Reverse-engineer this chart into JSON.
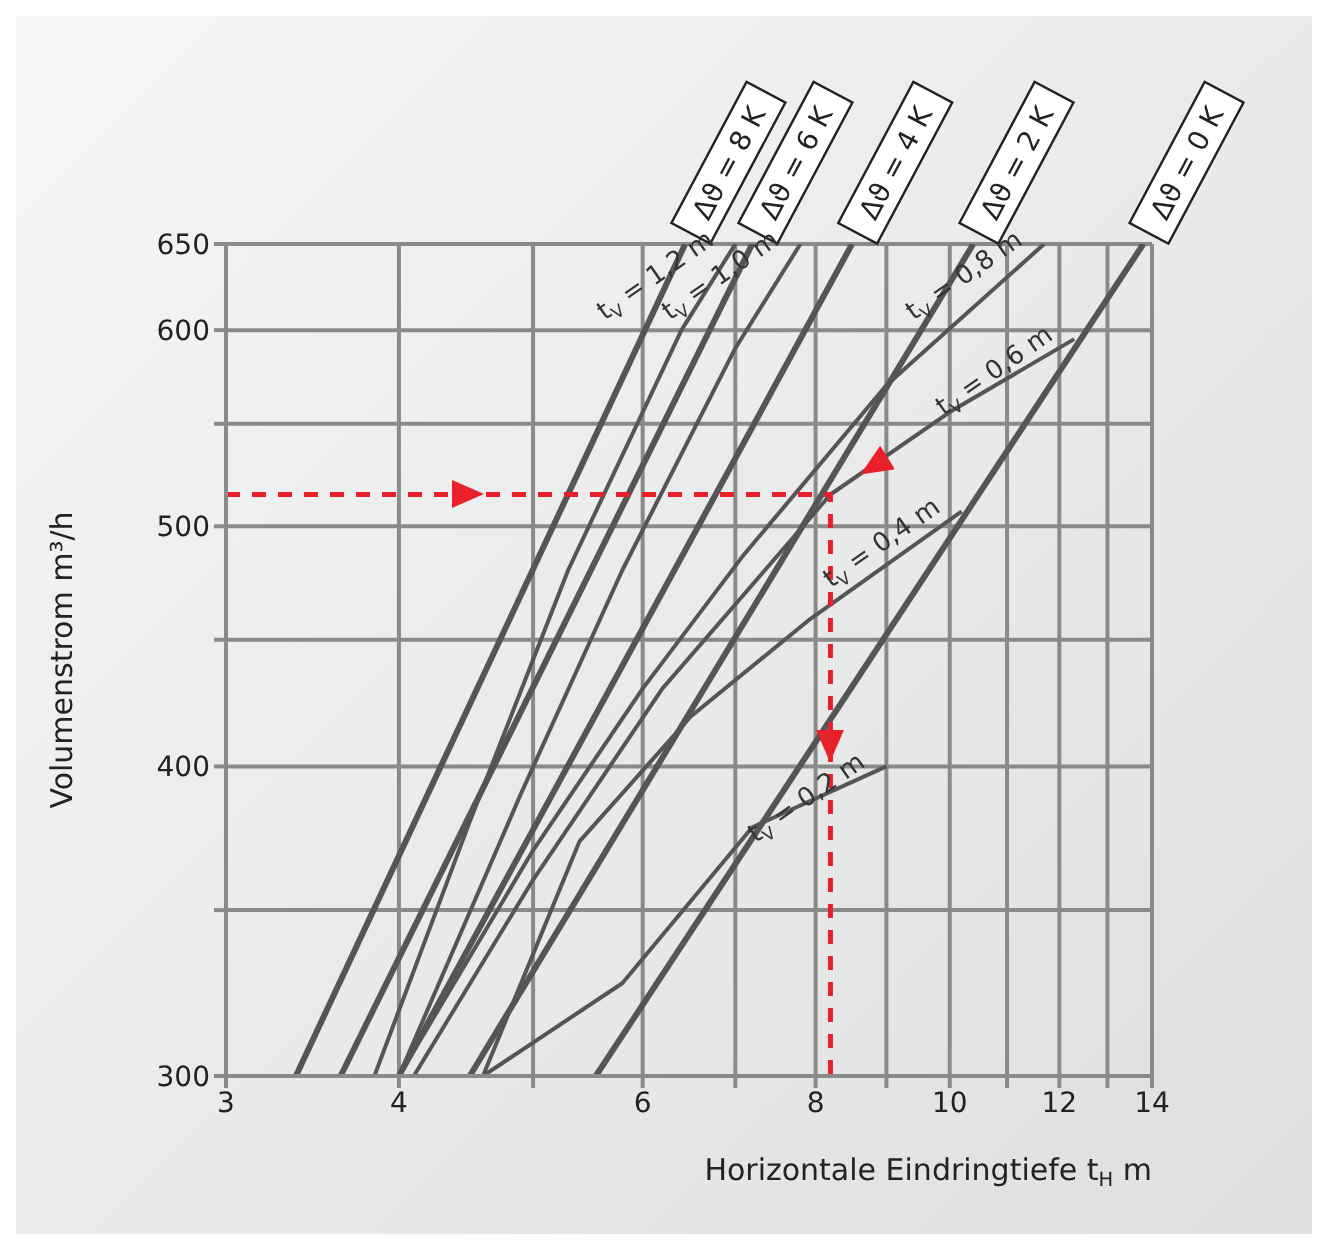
{
  "chart_data": {
    "type": "line",
    "xlabel": "Horizontale Eindringtiefe t$_{H}$ m",
    "ylabel": "Volumenstrom m³/h",
    "log": "xy",
    "grid": true,
    "marker": "none",
    "xlim": [
      3,
      14
    ],
    "xticks": [
      3,
      4,
      {
        "value": 5,
        "label": null
      },
      6,
      {
        "value": 7,
        "label": null
      },
      8,
      {
        "value": 9,
        "label": null
      },
      10,
      {
        "value": 11,
        "label": null
      },
      12,
      {
        "value": 13,
        "label": null
      },
      14
    ],
    "ylim": [
      300,
      650
    ],
    "yticks": [
      300,
      {
        "value": 350,
        "label": null
      },
      400,
      {
        "value": 450,
        "label": null
      },
      500,
      {
        "value": 550,
        "label": null
      },
      600,
      650
    ],
    "series": [
      {
        "name": "Δϑ = 8 K",
        "color": "#555555",
        "x": [
          3.37,
          6.44
        ],
        "values": [
          300,
          650
        ]
      },
      {
        "name": "Δϑ = 6 K",
        "color": "#555555",
        "x": [
          3.63,
          7.2
        ],
        "values": [
          300,
          650
        ]
      },
      {
        "name": "Δϑ = 4 K",
        "color": "#555555",
        "x": [
          4.0,
          8.5
        ],
        "values": [
          300,
          650
        ]
      },
      {
        "name": "Δϑ = 2 K",
        "color": "#555555",
        "x": [
          4.5,
          10.4
        ],
        "values": [
          300,
          650
        ]
      },
      {
        "name": "Δϑ = 0 K",
        "color": "#555555",
        "x": [
          5.55,
          13.8
        ],
        "values": [
          300,
          650
        ]
      },
      {
        "name": "t$_{V}$ = 1,2 m",
        "color": "#555555",
        "x": [
          3.84,
          4.5,
          5.3,
          6.4,
          7.0
        ],
        "values": [
          300,
          380,
          480,
          600,
          650
        ]
      },
      {
        "name": "t$_{V}$ = 1,0 m",
        "color": "#555555",
        "x": [
          4.0,
          4.9,
          5.8,
          7.0,
          7.8
        ],
        "values": [
          300,
          390,
          480,
          590,
          650
        ]
      },
      {
        "name": "t$_{V}$ = 0,8 m",
        "color": "#555555",
        "x": [
          4.0,
          5.0,
          6.0,
          7.1,
          9.0,
          11.7
        ],
        "values": [
          300,
          370,
          430,
          487,
          570,
          650
        ]
      },
      {
        "name": "t$_{V}$ = 0,6 m",
        "color": "#555555",
        "x": [
          4.1,
          5.0,
          6.2,
          8.2,
          10.0,
          12.3
        ],
        "values": [
          300,
          360,
          430,
          515,
          556,
          595
        ]
      },
      {
        "name": "t$_{V}$ = 0,4 m",
        "color": "#555555",
        "x": [
          4.6,
          5.4,
          6.5,
          7.9,
          10.2
        ],
        "values": [
          300,
          373,
          419,
          458,
          507
        ]
      },
      {
        "name": "t$_{V}$ = 0,2 m",
        "color": "#555555",
        "x": [
          4.6,
          5.8,
          7.2,
          9.0
        ],
        "values": [
          300,
          327,
          378,
          400
        ]
      },
      {
        "color": "#e8202a",
        "line_style": "dashed",
        "x": [
          3,
          8.2,
          8.2
        ],
        "values": [
          515,
          515,
          300
        ]
      }
    ]
  }
}
